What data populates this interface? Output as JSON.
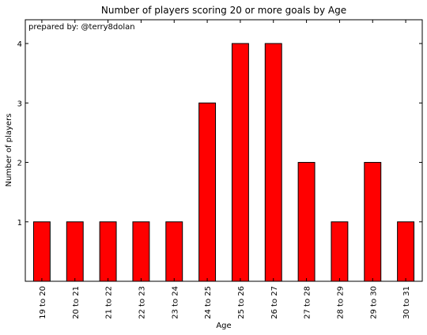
{
  "chart_data": {
    "type": "bar",
    "title": "Number of players scoring 20 or more goals by Age",
    "annotation": "prepared by: @terry8dolan",
    "xlabel": "Age",
    "ylabel": "Number of players",
    "categories": [
      "19 to 20",
      "20 to 21",
      "21 to 22",
      "22 to 23",
      "23 to 24",
      "24 to 25",
      "25 to 26",
      "26 to 27",
      "27 to 28",
      "28 to 29",
      "29 to 30",
      "30 to 31"
    ],
    "values": [
      1,
      1,
      1,
      1,
      1,
      3,
      4,
      4,
      2,
      1,
      2,
      1
    ],
    "ylim": [
      0,
      4.4
    ],
    "yticks": [
      1,
      2,
      3,
      4
    ],
    "grid": false,
    "legend": "none",
    "bar_color": "#ff0000",
    "edge_color": "#000000"
  }
}
